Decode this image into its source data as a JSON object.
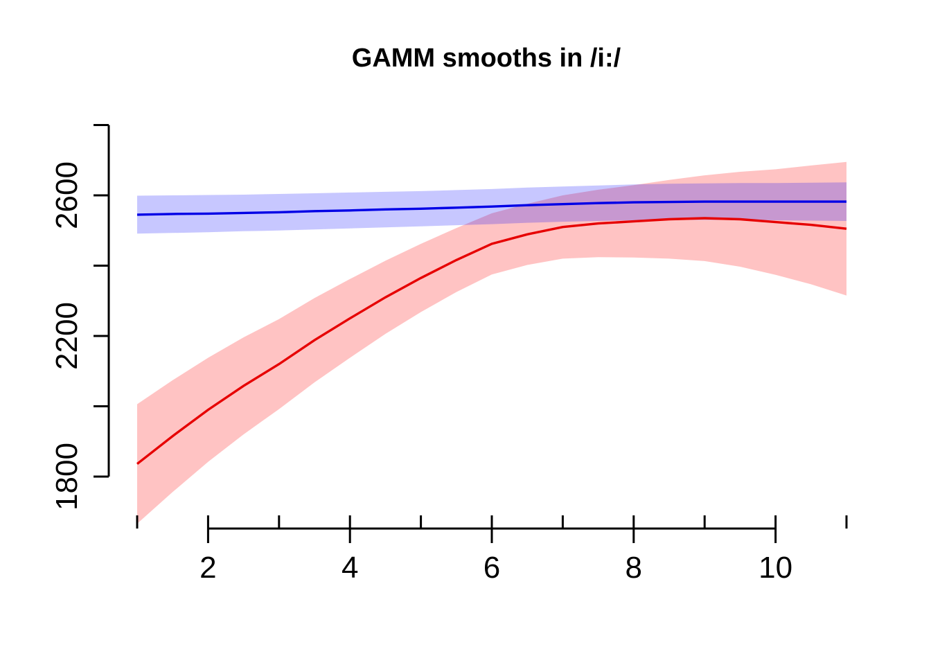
{
  "title": "GAMM smooths in /i:/",
  "colors": {
    "background": "#FFFFFF",
    "axis": "#000000",
    "text": "#000000",
    "blue_line": "#0000E6",
    "red_line": "#E60000",
    "blue_band_fill": "#0000FF",
    "blue_band_opacity": 0.22,
    "red_band_fill": "#FF0000",
    "red_band_opacity": 0.235
  },
  "chart_data": {
    "type": "line",
    "title": "GAMM smooths in /i:/",
    "grid": false,
    "legend": null,
    "x": [
      1,
      1.5,
      2,
      2.5,
      3,
      3.5,
      4,
      4.5,
      5,
      5.5,
      6,
      6.5,
      7,
      7.5,
      8,
      8.5,
      9,
      9.5,
      10,
      10.5,
      11
    ],
    "series": [
      {
        "name": "red-smooth",
        "color": "#E60000",
        "band_color": "#FF0000",
        "band_opacity": 0.235,
        "values": [
          1836,
          1915,
          1990,
          2058,
          2120,
          2188,
          2250,
          2310,
          2365,
          2416,
          2462,
          2489,
          2510,
          2520,
          2526,
          2532,
          2535,
          2532,
          2524,
          2516,
          2505
        ],
        "upper": [
          2006,
          2074,
          2138,
          2196,
          2248,
          2308,
          2362,
          2414,
          2462,
          2507,
          2549,
          2576,
          2600,
          2616,
          2629,
          2644,
          2657,
          2667,
          2674,
          2685,
          2695
        ],
        "lower": [
          1666,
          1756,
          1842,
          1920,
          1992,
          2068,
          2138,
          2206,
          2268,
          2325,
          2375,
          2402,
          2420,
          2424,
          2423,
          2420,
          2413,
          2397,
          2374,
          2347,
          2315
        ]
      },
      {
        "name": "blue-smooth",
        "color": "#0000E6",
        "band_color": "#0000FF",
        "band_opacity": 0.22,
        "values": [
          2545,
          2547,
          2548,
          2550,
          2552,
          2555,
          2557,
          2560,
          2562,
          2565,
          2568,
          2572,
          2575,
          2578,
          2580,
          2581,
          2582,
          2582,
          2582,
          2582,
          2582
        ],
        "upper": [
          2599,
          2600,
          2601,
          2602,
          2604,
          2606,
          2608,
          2610,
          2612,
          2615,
          2618,
          2622,
          2625,
          2628,
          2631,
          2633,
          2634,
          2635,
          2635,
          2636,
          2637
        ],
        "lower": [
          2491,
          2493,
          2495,
          2498,
          2500,
          2503,
          2506,
          2509,
          2512,
          2515,
          2518,
          2522,
          2525,
          2527,
          2529,
          2530,
          2530,
          2530,
          2529,
          2528,
          2527
        ]
      }
    ],
    "x_axis": {
      "range": [
        0.6,
        11.4
      ],
      "labeled_ticks": [
        {
          "value": 2,
          "label": "2"
        },
        {
          "value": 4,
          "label": "4"
        },
        {
          "value": 6,
          "label": "6"
        },
        {
          "value": 8,
          "label": "8"
        },
        {
          "value": 10,
          "label": "10"
        }
      ],
      "inner_ticks": [
        1,
        2,
        3,
        4,
        5,
        6,
        7,
        8,
        9,
        10,
        11
      ]
    },
    "y_axis": {
      "ticks": [
        {
          "value": 1800,
          "label": "1800"
        },
        {
          "value": 2000,
          "label": ""
        },
        {
          "value": 2200,
          "label": "2200"
        },
        {
          "value": 2400,
          "label": ""
        },
        {
          "value": 2600,
          "label": "2600"
        },
        {
          "value": 2800,
          "label": ""
        }
      ]
    }
  }
}
